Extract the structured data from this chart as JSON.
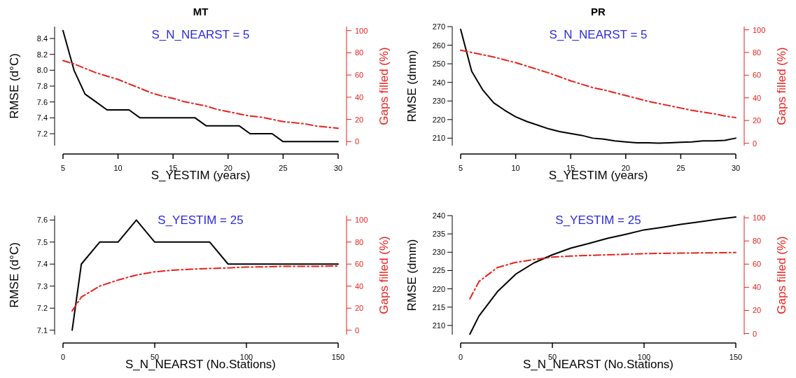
{
  "chart_data": [
    {
      "type": "line",
      "title": "MT",
      "subtitle": "S_N_NEARST = 5",
      "xlabel": "S_YESTIM (years)",
      "ylabel": "RMSE (d°C)",
      "y2label": "Gaps filled (%)",
      "x": [
        5,
        6,
        7,
        8,
        9,
        10,
        11,
        12,
        13,
        14,
        15,
        16,
        17,
        18,
        19,
        20,
        21,
        22,
        23,
        24,
        25,
        26,
        27,
        28,
        29,
        30
      ],
      "xlim": [
        5,
        30
      ],
      "xticks": [
        5,
        10,
        15,
        20,
        25,
        30
      ],
      "ylim": [
        7.05,
        8.55
      ],
      "yticks": [
        7.2,
        7.4,
        7.6,
        7.8,
        {
          "value": 8,
          "label": "8.0"
        },
        8.2,
        8.4
      ],
      "y2lim": [
        -3.6,
        103.6
      ],
      "y2ticks": [
        0,
        20,
        40,
        60,
        80,
        100
      ],
      "grid": false,
      "series": [
        {
          "color": "#000000",
          "line_style": "solid",
          "values": [
            8.5,
            8.0,
            7.7,
            7.6,
            7.5,
            7.5,
            7.5,
            7.4,
            7.4,
            7.4,
            7.4,
            7.4,
            7.4,
            7.3,
            7.3,
            7.3,
            7.3,
            7.2,
            7.2,
            7.2,
            7.1,
            7.1,
            7.1,
            7.1,
            7.1,
            7.1
          ]
        },
        {
          "color": "#e8211d",
          "line_style": "dashed",
          "axis": "y2",
          "values": [
            73,
            70,
            66,
            62,
            59,
            56,
            52,
            48,
            44,
            41,
            39,
            36,
            34,
            32,
            29,
            27,
            25,
            23,
            22,
            20,
            18,
            17,
            16,
            14,
            13,
            12
          ]
        }
      ]
    },
    {
      "type": "line",
      "title": "PR",
      "subtitle": "S_N_NEARST = 5",
      "xlabel": "S_YESTIM (years)",
      "ylabel": "RMSE (dmm)",
      "y2label": "Gaps filled (%)",
      "x": [
        5,
        6,
        7,
        8,
        9,
        10,
        11,
        12,
        13,
        14,
        15,
        16,
        17,
        18,
        19,
        20,
        21,
        22,
        23,
        24,
        25,
        26,
        27,
        28,
        29,
        30
      ],
      "xlim": [
        5,
        30
      ],
      "xticks": [
        5,
        10,
        15,
        20,
        25,
        30
      ],
      "ylim": [
        206,
        270
      ],
      "yticks": [
        210,
        220,
        230,
        240,
        250,
        260,
        270
      ],
      "y2lim": [
        -2.1,
        102.8
      ],
      "y2ticks": [
        0,
        20,
        40,
        60,
        80,
        100
      ],
      "grid": false,
      "series": [
        {
          "color": "#000000",
          "line_style": "solid",
          "values": [
            268.5,
            246,
            236,
            229,
            225,
            221.5,
            219,
            217,
            215,
            213.5,
            212.5,
            211.5,
            210,
            209.5,
            208.5,
            208,
            207.5,
            207.5,
            207.3,
            207.5,
            207.8,
            208,
            208.5,
            208.5,
            208.8,
            210
          ]
        },
        {
          "color": "#e8211d",
          "line_style": "dashed",
          "axis": "y2",
          "values": [
            82,
            80,
            78,
            76,
            73.5,
            71,
            68,
            65,
            62,
            58.5,
            55,
            52,
            49,
            47,
            44.5,
            42,
            39.5,
            37,
            35,
            33,
            31,
            29,
            27.5,
            26,
            24,
            22.5
          ]
        }
      ]
    },
    {
      "type": "line",
      "subtitle": "S_YESTIM = 25",
      "xlabel": "S_N_NEARST (No.Stations)",
      "ylabel": "RMSE (d°C)",
      "y2label": "Gaps filled (%)",
      "x": [
        5,
        10,
        20,
        30,
        40,
        50,
        60,
        70,
        80,
        90,
        100,
        110,
        120,
        130,
        140,
        150
      ],
      "xlim": [
        0,
        150
      ],
      "xticks": [
        0,
        50,
        100,
        150
      ],
      "ylim": [
        7.08,
        7.62
      ],
      "yticks": [
        7.1,
        7.2,
        7.3,
        7.4,
        7.5,
        7.6
      ],
      "y2lim": [
        -4,
        104
      ],
      "y2ticks": [
        0,
        20,
        40,
        60,
        80,
        100
      ],
      "grid": false,
      "series": [
        {
          "color": "#000000",
          "line_style": "solid",
          "values": [
            7.1,
            7.4,
            7.5,
            7.5,
            7.6,
            7.5,
            7.5,
            7.5,
            7.5,
            7.4,
            7.4,
            7.4,
            7.4,
            7.4,
            7.4,
            7.4
          ]
        },
        {
          "color": "#e8211d",
          "line_style": "dashed",
          "axis": "y2",
          "values": [
            17.5,
            30,
            40,
            45.5,
            50,
            53,
            54.5,
            55.4,
            56,
            56.5,
            57.3,
            57.5,
            58,
            58,
            58,
            58.3
          ]
        }
      ]
    },
    {
      "type": "line",
      "subtitle": "S_YESTIM = 25",
      "xlabel": "S_N_NEARST (No.Stations)",
      "ylabel": "RMSE (dmm)",
      "y2label": "Gaps filled (%)",
      "x": [
        5,
        10,
        20,
        30,
        40,
        50,
        60,
        70,
        80,
        90,
        100,
        110,
        120,
        130,
        140,
        150
      ],
      "xlim": [
        0,
        150
      ],
      "xticks": [
        0,
        50,
        100,
        150
      ],
      "ylim": [
        207.5,
        240
      ],
      "yticks": [
        210,
        215,
        220,
        225,
        230,
        235,
        240
      ],
      "y2lim": [
        -0.9,
        101.9
      ],
      "y2ticks": [
        0,
        20,
        40,
        60,
        80,
        100
      ],
      "grid": false,
      "series": [
        {
          "color": "#000000",
          "line_style": "solid",
          "values": [
            207.6,
            212.6,
            219.2,
            224,
            227.1,
            229.3,
            231.1,
            232.4,
            233.8,
            234.9,
            236.1,
            236.8,
            237.6,
            238.3,
            239,
            239.6
          ]
        },
        {
          "color": "#e8211d",
          "line_style": "dashed",
          "axis": "y2",
          "values": [
            30,
            45,
            57,
            61.5,
            64,
            66,
            67,
            67.5,
            68,
            68.5,
            69,
            69.3,
            69.5,
            69.7,
            69.8,
            70
          ]
        }
      ]
    }
  ]
}
